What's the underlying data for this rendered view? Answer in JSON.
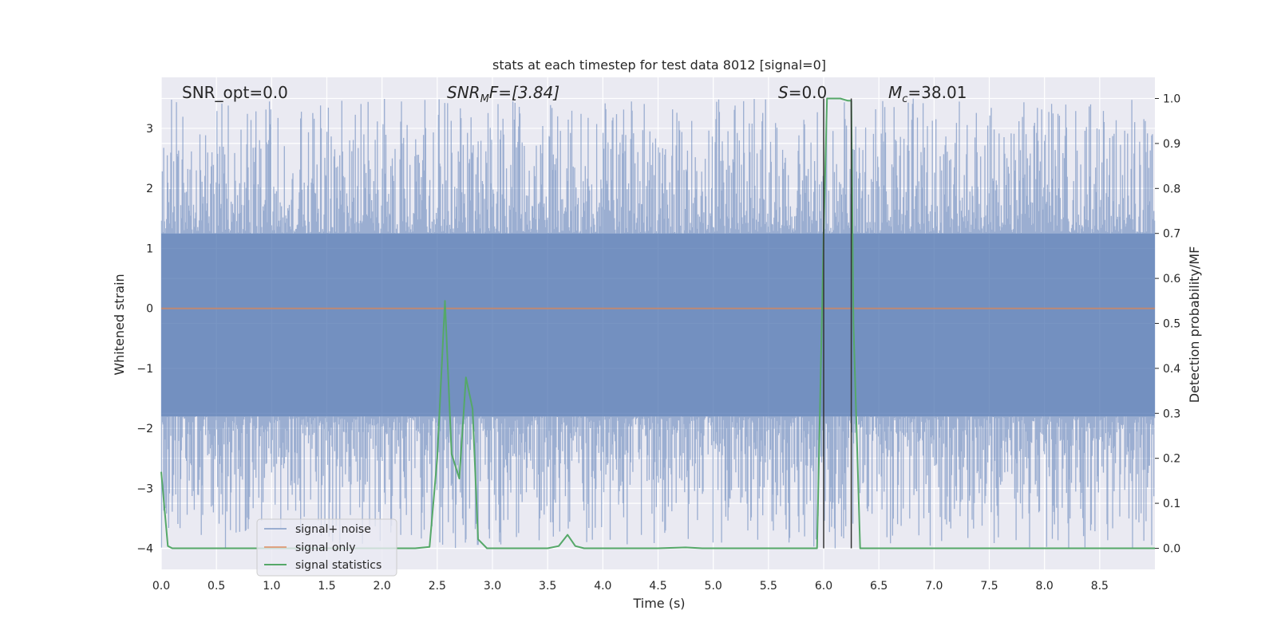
{
  "chart_data": {
    "type": "line",
    "title": "stats at each timestep for test data 8012 [signal=0]",
    "xlabel": "Time (s)",
    "ylabel": "Whitened strain",
    "y2label": "Detection probability/MF",
    "xlim": [
      0.0,
      9.0
    ],
    "ylim": [
      -4.35,
      3.85
    ],
    "y2lim": [
      -0.047,
      1.047
    ],
    "x_ticks": [
      "0.0",
      "0.5",
      "1.0",
      "1.5",
      "2.0",
      "2.5",
      "3.0",
      "3.5",
      "4.0",
      "4.5",
      "5.0",
      "5.5",
      "6.0",
      "6.5",
      "7.0",
      "7.5",
      "8.0",
      "8.5"
    ],
    "y_ticks": [
      "3",
      "2",
      "1",
      "0",
      "−1",
      "−2",
      "−3",
      "−4"
    ],
    "y2_ticks": [
      "1.0",
      "0.9",
      "0.8",
      "0.7",
      "0.6",
      "0.5",
      "0.4",
      "0.3",
      "0.2",
      "0.1",
      "0.0"
    ],
    "grid": true,
    "background_color": "#eaeaf2",
    "annotations": {
      "snr_opt": "SNR_opt=0.0",
      "snr_mf_main": "SNR",
      "snr_mf_sub": "M",
      "snr_mf_rest": "F=[3.84]",
      "s_main": "S",
      "s_rest": "=0.0",
      "mc_main": "M",
      "mc_sub": "c",
      "mc_rest": "=38.01"
    },
    "vertical_lines": [
      6.0,
      6.25
    ],
    "legend": {
      "placement": "lower-left",
      "entries": [
        {
          "label": "signal+ noise",
          "color": "#4c72b0"
        },
        {
          "label": "signal only",
          "color": "#dd8452"
        },
        {
          "label": "signal statistics",
          "color": "#55a868"
        }
      ]
    },
    "series": [
      {
        "name": "signal+ noise",
        "color": "#4c72b0",
        "kind": "noise",
        "description_values": {
          "core_min": -1.8,
          "core_max": 1.25,
          "peak_max": 3.5,
          "trough_min": -4.0
        }
      },
      {
        "name": "signal only",
        "color": "#dd8452",
        "x": [
          0.0,
          9.0
        ],
        "y": [
          0.0,
          0.0
        ]
      },
      {
        "name": "signal statistics",
        "color": "#55a868",
        "axis": "right",
        "x": [
          0.0,
          0.06,
          0.1,
          0.2,
          0.5,
          1.0,
          1.5,
          2.0,
          2.3,
          2.43,
          2.5,
          2.57,
          2.63,
          2.7,
          2.76,
          2.82,
          2.87,
          2.95,
          3.1,
          3.5,
          3.6,
          3.68,
          3.75,
          3.83,
          4.0,
          4.5,
          4.75,
          4.9,
          5.0,
          5.5,
          5.94,
          6.0,
          6.03,
          6.08,
          6.15,
          6.22,
          6.25,
          6.27,
          6.33,
          6.5,
          7.0,
          8.0,
          9.0
        ],
        "y": [
          0.17,
          0.005,
          0.0,
          0.0,
          0.0,
          0.0,
          0.0,
          0.0,
          0.0,
          0.003,
          0.2,
          0.55,
          0.21,
          0.155,
          0.38,
          0.31,
          0.02,
          0.0,
          0.0,
          0.0,
          0.005,
          0.03,
          0.005,
          0.0,
          0.0,
          0.0,
          0.002,
          0.0,
          0.0,
          0.0,
          0.0,
          0.7,
          1.0,
          1.0,
          1.0,
          0.995,
          0.995,
          0.5,
          0.0,
          0.0,
          0.0,
          0.0,
          0.0
        ]
      }
    ]
  }
}
